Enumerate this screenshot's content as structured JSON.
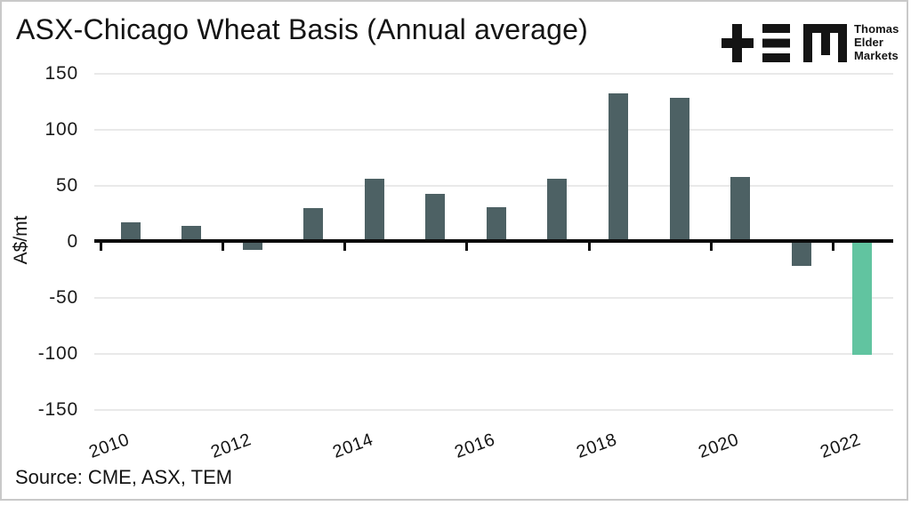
{
  "header": {
    "title": "ASX-Chicago Wheat Basis (Annual average)"
  },
  "logo": {
    "lines": [
      "Thomas",
      "Elder",
      "Markets"
    ]
  },
  "source": {
    "text": "Source: CME, ASX, TEM"
  },
  "chart_data": {
    "type": "bar",
    "title": "ASX-Chicago Wheat Basis (Annual average)",
    "xlabel": "",
    "ylabel": "A$/mt",
    "categories": [
      "2010",
      "2011",
      "2012",
      "2013",
      "2014",
      "2015",
      "2016",
      "2017",
      "2018",
      "2019",
      "2020",
      "2021",
      "2022"
    ],
    "values": [
      17,
      14,
      -7,
      30,
      56,
      43,
      31,
      56,
      132,
      128,
      58,
      -22,
      -101
    ],
    "x_tick_labels": [
      "2010",
      "2012",
      "2014",
      "2016",
      "2018",
      "2020",
      "2022"
    ],
    "y_ticks": [
      150,
      100,
      50,
      0,
      -50,
      -100,
      -150
    ],
    "ylim": [
      -150,
      150
    ],
    "grid": "horizontal-light",
    "legend": "none",
    "bar_color": "#4d6164",
    "highlight_color": "#61c4a0",
    "highlight_year": "2022",
    "source": "Source: CME, ASX, TEM"
  }
}
